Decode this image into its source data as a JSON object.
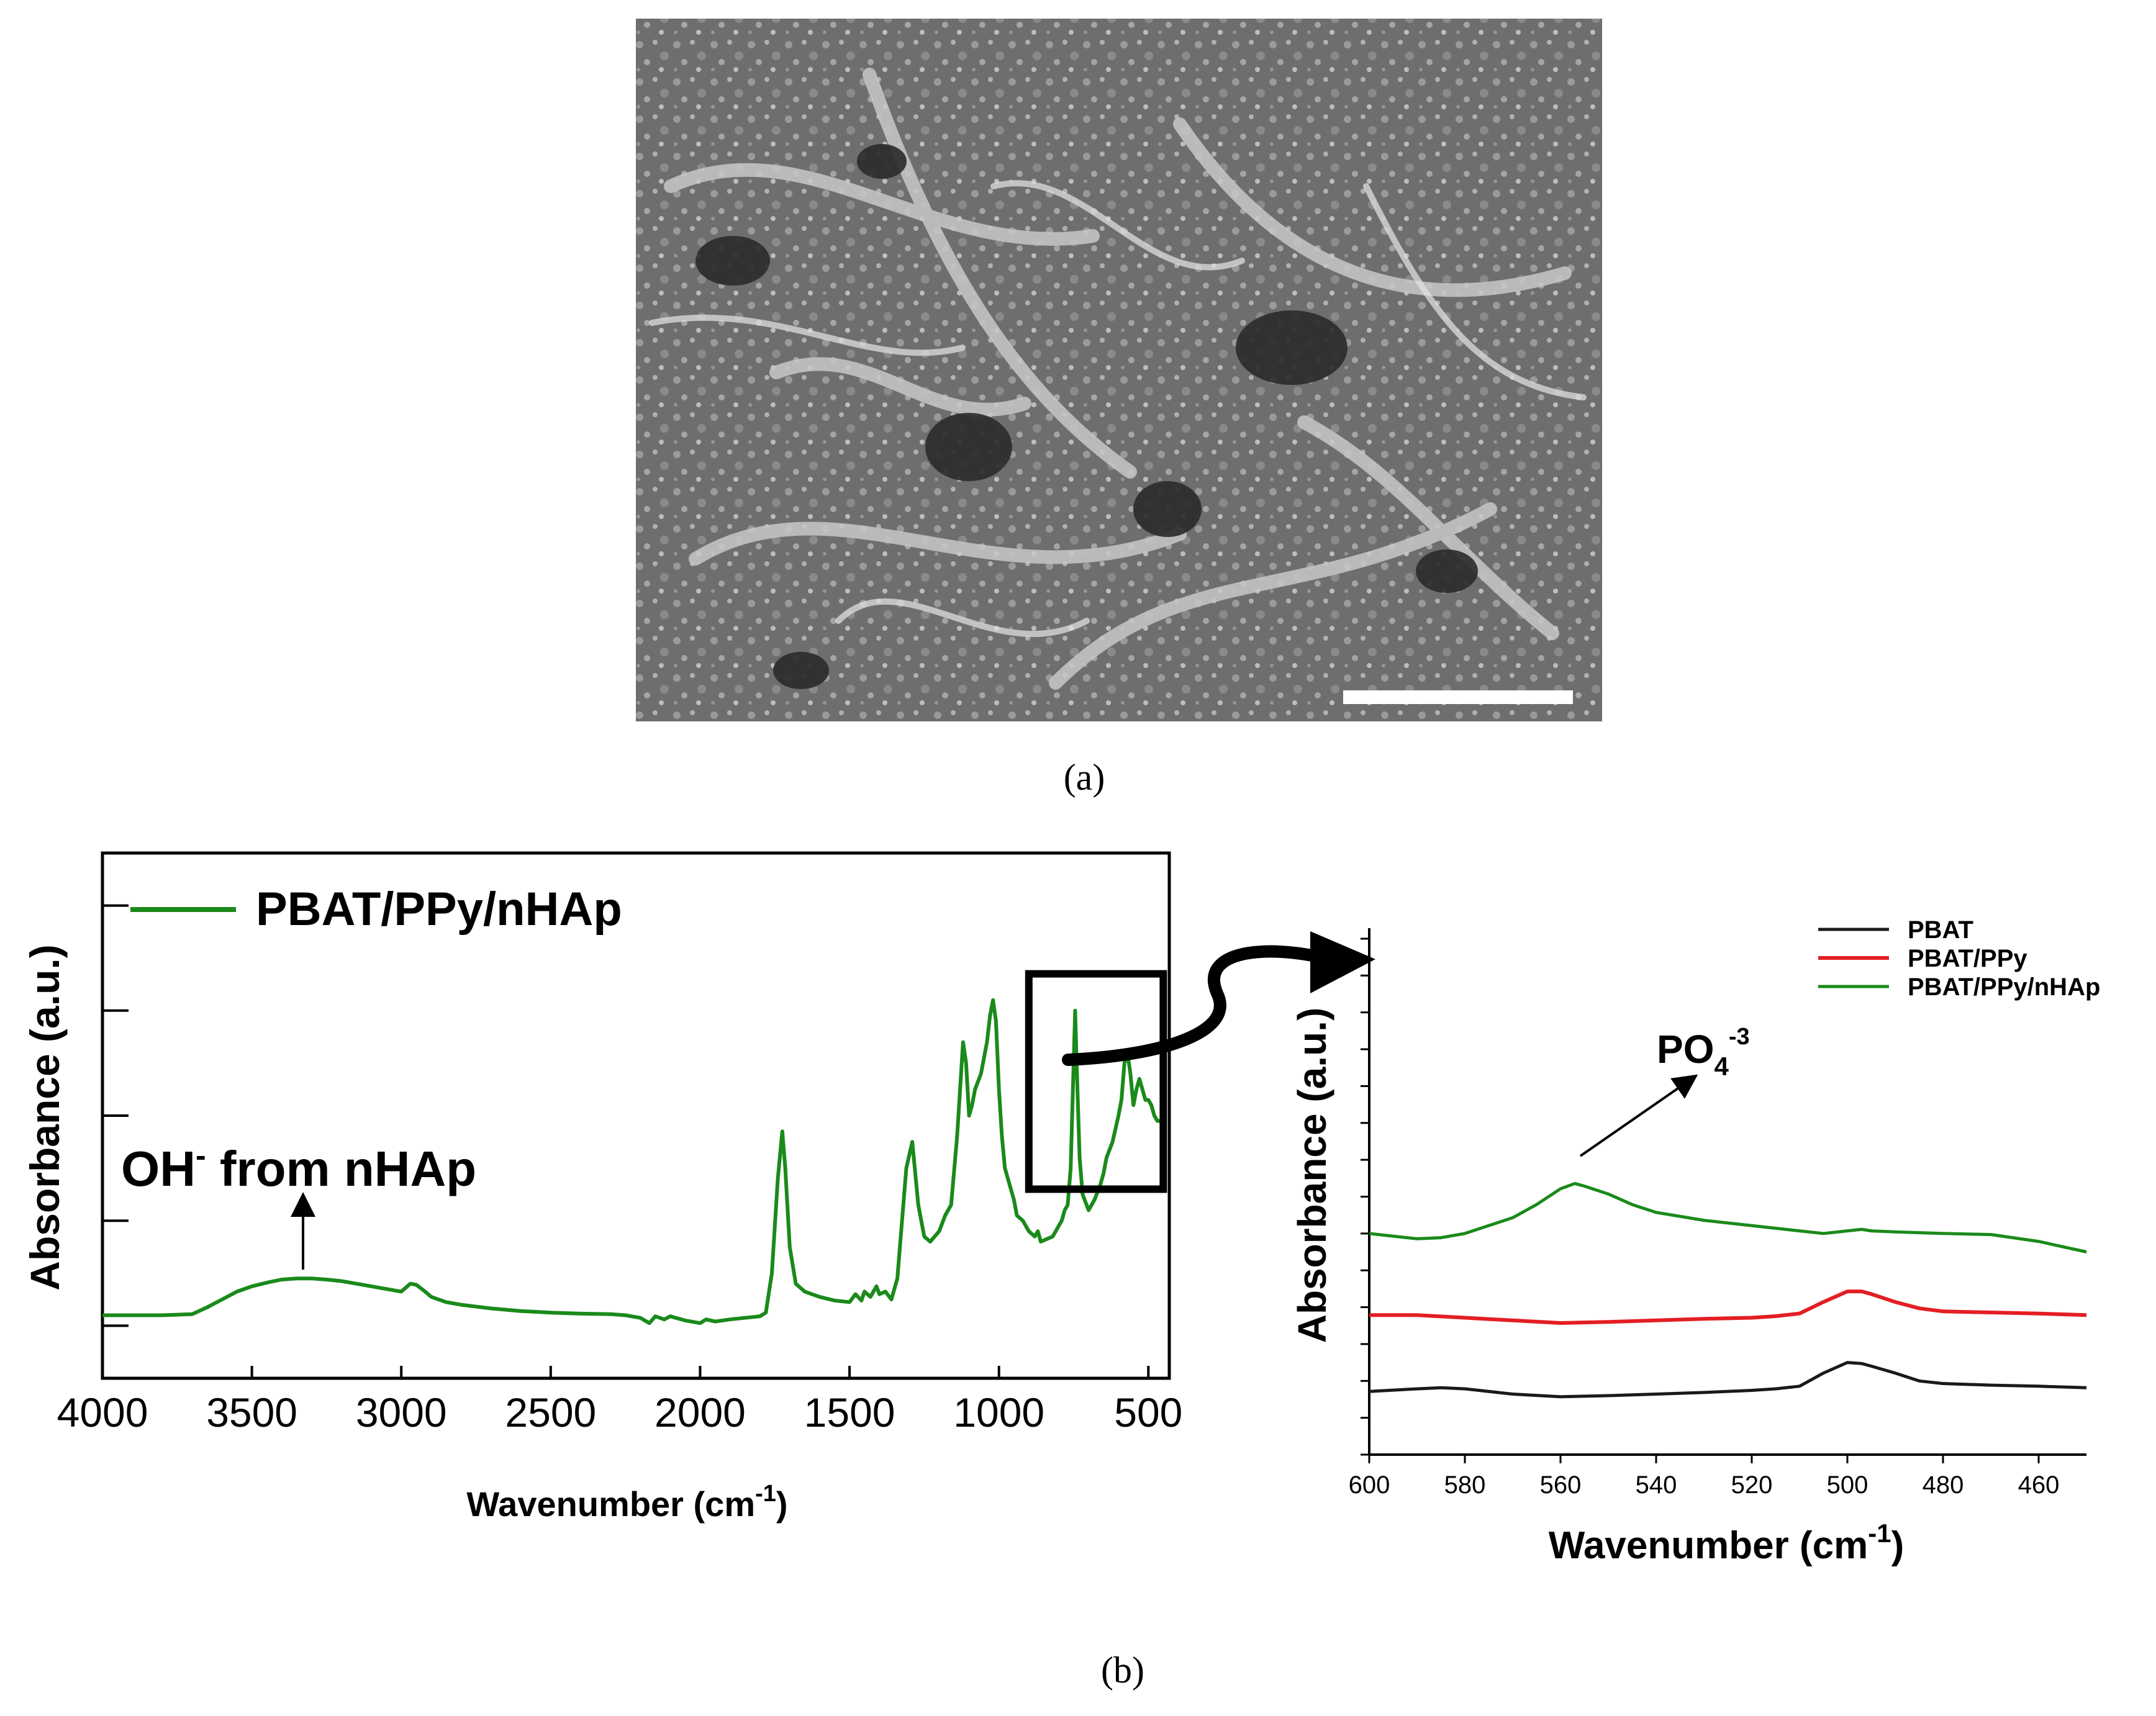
{
  "panel_a": {
    "caption": "(a)",
    "image_description": "SEM micrograph of fibrous porous scaffold with white scale bar"
  },
  "panel_b": {
    "caption": "(b)"
  },
  "colors": {
    "green": "#1a8a1a",
    "red": "#e31e24",
    "black": "#1a1a1a",
    "sem_bg": "#7a7a7a"
  },
  "chart_data": [
    {
      "type": "line",
      "title": "",
      "xlabel": "Wavenumber (cm-1)",
      "xlabel_main": "Wavenumber (cm",
      "xlabel_sup": "-1",
      "xlabel_end": ")",
      "ylabel": "Absorbance (a.u.)",
      "xlim": [
        4000,
        430
      ],
      "x_reversed": true,
      "ylim": [
        0,
        1
      ],
      "x_ticks": [
        4000,
        3500,
        3000,
        2500,
        2000,
        1500,
        1000,
        500
      ],
      "x_tick_labels": [
        "4000",
        "3500",
        "3000",
        "2500",
        "2000",
        "1500",
        "1000",
        "500"
      ],
      "y_ticks": [
        0.1,
        0.3,
        0.5,
        0.7,
        0.9
      ],
      "legend": {
        "position": "top-left",
        "entries": [
          "PBAT/PPy/nHAp"
        ]
      },
      "annotation": {
        "text_main": "OH",
        "text_sup": "-",
        "text_rest": " from nHAp",
        "x": 3340,
        "y": 0.16
      },
      "inset_box_x_range": [
        900,
        450
      ],
      "series": [
        {
          "name": "PBAT/PPy/nHAp",
          "color": "#1a8a1a",
          "x": [
            4000,
            3900,
            3800,
            3700,
            3650,
            3600,
            3550,
            3500,
            3450,
            3400,
            3350,
            3300,
            3250,
            3200,
            3150,
            3100,
            3050,
            3000,
            2970,
            2950,
            2920,
            2900,
            2850,
            2800,
            2700,
            2600,
            2500,
            2400,
            2300,
            2250,
            2200,
            2170,
            2150,
            2120,
            2100,
            2050,
            2000,
            1980,
            1950,
            1900,
            1850,
            1800,
            1780,
            1760,
            1740,
            1725,
            1715,
            1700,
            1680,
            1650,
            1600,
            1550,
            1500,
            1480,
            1460,
            1450,
            1430,
            1410,
            1400,
            1380,
            1360,
            1340,
            1310,
            1290,
            1270,
            1250,
            1230,
            1200,
            1180,
            1160,
            1140,
            1120,
            1110,
            1100,
            1090,
            1080,
            1060,
            1040,
            1030,
            1020,
            1010,
            1000,
            990,
            980,
            960,
            950,
            940,
            920,
            900,
            880,
            870,
            860,
            840,
            820,
            800,
            790,
            780,
            770,
            760,
            750,
            745,
            740,
            730,
            720,
            700,
            680,
            660,
            650,
            640,
            620,
            600,
            590,
            580,
            570,
            565,
            560,
            555,
            550,
            540,
            530,
            520,
            510,
            500,
            490,
            480,
            470,
            460,
            450
          ],
          "y": [
            0.12,
            0.12,
            0.12,
            0.122,
            0.135,
            0.15,
            0.165,
            0.175,
            0.182,
            0.188,
            0.19,
            0.19,
            0.188,
            0.185,
            0.18,
            0.175,
            0.17,
            0.165,
            0.18,
            0.178,
            0.165,
            0.155,
            0.145,
            0.14,
            0.133,
            0.128,
            0.125,
            0.123,
            0.122,
            0.12,
            0.115,
            0.105,
            0.118,
            0.112,
            0.118,
            0.11,
            0.105,
            0.112,
            0.108,
            0.112,
            0.115,
            0.118,
            0.125,
            0.2,
            0.38,
            0.47,
            0.4,
            0.25,
            0.18,
            0.165,
            0.155,
            0.148,
            0.145,
            0.16,
            0.148,
            0.165,
            0.155,
            0.175,
            0.16,
            0.165,
            0.15,
            0.19,
            0.4,
            0.45,
            0.33,
            0.27,
            0.26,
            0.28,
            0.31,
            0.33,
            0.46,
            0.64,
            0.6,
            0.5,
            0.52,
            0.55,
            0.58,
            0.64,
            0.69,
            0.72,
            0.68,
            0.55,
            0.46,
            0.4,
            0.36,
            0.34,
            0.31,
            0.3,
            0.28,
            0.27,
            0.28,
            0.26,
            0.265,
            0.27,
            0.29,
            0.3,
            0.32,
            0.33,
            0.4,
            0.6,
            0.7,
            0.6,
            0.42,
            0.35,
            0.32,
            0.34,
            0.37,
            0.39,
            0.42,
            0.45,
            0.5,
            0.53,
            0.6,
            0.62,
            0.6,
            0.58,
            0.55,
            0.52,
            0.55,
            0.57,
            0.55,
            0.53,
            0.53,
            0.52,
            0.5,
            0.49,
            0.49,
            0.48
          ]
        }
      ]
    },
    {
      "type": "line",
      "title": "",
      "xlabel": "Wavenumber (cm-1)",
      "xlabel_main": "Wavenumber (cm",
      "xlabel_sup": "-1",
      "xlabel_end": ")",
      "ylabel": "Absorbance (a.u.)",
      "xlim": [
        600,
        450
      ],
      "x_reversed": true,
      "ylim": [
        0,
        1
      ],
      "x_ticks": [
        600,
        580,
        560,
        540,
        520,
        500,
        480,
        460
      ],
      "x_tick_labels": [
        "600",
        "580",
        "560",
        "540",
        "520",
        "500",
        "480",
        "460"
      ],
      "y_ticks": [
        0.0,
        0.07,
        0.14,
        0.21,
        0.28,
        0.35,
        0.42,
        0.49,
        0.56,
        0.63,
        0.7,
        0.77,
        0.84,
        0.91,
        0.98
      ],
      "legend": {
        "position": "top-right",
        "entries": [
          "PBAT",
          "PBAT/PPy",
          "PBAT/PPy/nHAp"
        ]
      },
      "annotation": {
        "text_main": "PO",
        "text_sub": "4",
        "text_sup": "-3",
        "x": 557,
        "y": 0.54
      },
      "series": [
        {
          "name": "PBAT",
          "color": "#1a1a1a",
          "x": [
            600,
            590,
            585,
            580,
            570,
            560,
            550,
            540,
            530,
            520,
            515,
            510,
            505,
            500,
            497,
            495,
            490,
            485,
            480,
            470,
            460,
            450
          ],
          "y": [
            0.12,
            0.125,
            0.127,
            0.125,
            0.115,
            0.11,
            0.112,
            0.115,
            0.118,
            0.122,
            0.125,
            0.13,
            0.155,
            0.175,
            0.173,
            0.168,
            0.155,
            0.14,
            0.135,
            0.132,
            0.13,
            0.127
          ]
        },
        {
          "name": "PBAT/PPy",
          "color": "#e31e24",
          "x": [
            600,
            590,
            580,
            570,
            560,
            550,
            540,
            530,
            520,
            515,
            510,
            505,
            500,
            497,
            495,
            490,
            485,
            480,
            470,
            460,
            450
          ],
          "y": [
            0.265,
            0.265,
            0.26,
            0.255,
            0.25,
            0.252,
            0.255,
            0.258,
            0.26,
            0.263,
            0.268,
            0.29,
            0.31,
            0.31,
            0.305,
            0.29,
            0.278,
            0.272,
            0.27,
            0.268,
            0.265
          ]
        },
        {
          "name": "PBAT/PPy/nHAp",
          "color": "#1a8a1a",
          "x": [
            600,
            595,
            590,
            585,
            580,
            570,
            565,
            560,
            557,
            555,
            550,
            545,
            540,
            530,
            520,
            510,
            505,
            500,
            497,
            495,
            490,
            480,
            470,
            460,
            450
          ],
          "y": [
            0.42,
            0.415,
            0.41,
            0.412,
            0.42,
            0.45,
            0.475,
            0.505,
            0.515,
            0.51,
            0.495,
            0.475,
            0.46,
            0.445,
            0.435,
            0.425,
            0.42,
            0.425,
            0.428,
            0.425,
            0.423,
            0.42,
            0.418,
            0.405,
            0.385
          ]
        }
      ]
    }
  ]
}
